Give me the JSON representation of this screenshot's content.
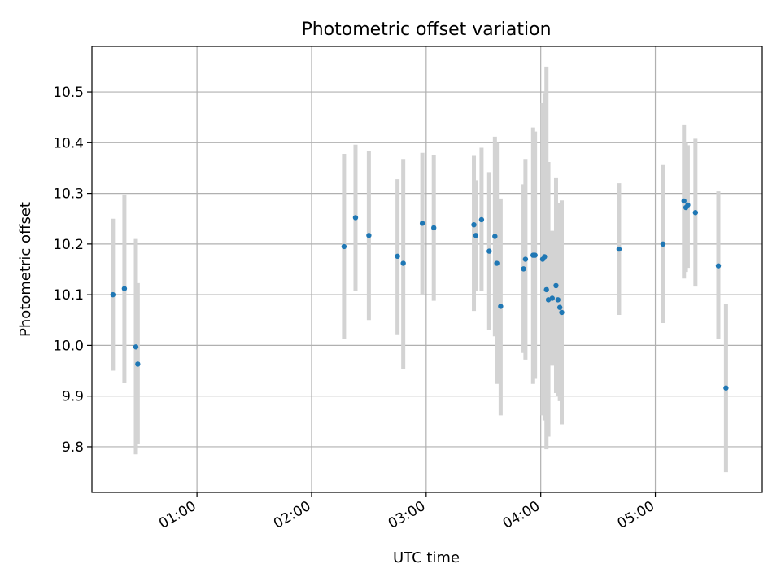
{
  "chart_data": {
    "type": "scatter",
    "title": "Photometric offset variation",
    "xlabel": "UTC time",
    "ylabel": "Photometric offset",
    "grid": true,
    "x_ticks": [
      "01:00",
      "02:00",
      "03:00",
      "04:00",
      "05:00"
    ],
    "y_ticks": [
      "9.8",
      "9.9",
      "10.0",
      "10.1",
      "10.2",
      "10.3",
      "10.4",
      "10.5"
    ],
    "xlim": [
      "00:05",
      "05:56"
    ],
    "ylim": [
      9.71,
      10.59
    ],
    "colors": {
      "point": "#1f77b4",
      "errorbar": "#d3d3d3"
    },
    "series": [
      {
        "points": [
          {
            "x": "00:16",
            "y": 10.1,
            "ylo": 9.95,
            "yhi": 10.25
          },
          {
            "x": "00:22",
            "y": 10.112,
            "ylo": 9.926,
            "yhi": 10.298
          },
          {
            "x": "00:28",
            "y": 9.997,
            "ylo": 9.785,
            "yhi": 10.21
          },
          {
            "x": "00:29",
            "y": 9.963,
            "ylo": 9.805,
            "yhi": 10.123
          },
          {
            "x": "02:17",
            "y": 10.195,
            "ylo": 10.012,
            "yhi": 10.378
          },
          {
            "x": "02:23",
            "y": 10.252,
            "ylo": 10.108,
            "yhi": 10.396
          },
          {
            "x": "02:30",
            "y": 10.217,
            "ylo": 10.05,
            "yhi": 10.384
          },
          {
            "x": "02:45",
            "y": 10.176,
            "ylo": 10.022,
            "yhi": 10.328
          },
          {
            "x": "02:48",
            "y": 10.162,
            "ylo": 9.954,
            "yhi": 10.368
          },
          {
            "x": "02:58",
            "y": 10.241,
            "ylo": 10.1,
            "yhi": 10.38
          },
          {
            "x": "03:04",
            "y": 10.232,
            "ylo": 10.088,
            "yhi": 10.376
          },
          {
            "x": "03:25",
            "y": 10.238,
            "ylo": 10.068,
            "yhi": 10.374
          },
          {
            "x": "03:26",
            "y": 10.217,
            "ylo": 10.108,
            "yhi": 10.326
          },
          {
            "x": "03:29",
            "y": 10.248,
            "ylo": 10.108,
            "yhi": 10.39
          },
          {
            "x": "03:33",
            "y": 10.186,
            "ylo": 10.03,
            "yhi": 10.342
          },
          {
            "x": "03:36",
            "y": 10.215,
            "ylo": 10.018,
            "yhi": 10.412
          },
          {
            "x": "03:37",
            "y": 10.162,
            "ylo": 9.924,
            "yhi": 10.4
          },
          {
            "x": "03:39",
            "y": 10.077,
            "ylo": 9.862,
            "yhi": 10.29
          },
          {
            "x": "03:51",
            "y": 10.151,
            "ylo": 9.985,
            "yhi": 10.318
          },
          {
            "x": "03:52",
            "y": 10.17,
            "ylo": 9.972,
            "yhi": 10.368
          },
          {
            "x": "03:56",
            "y": 10.178,
            "ylo": 9.924,
            "yhi": 10.43
          },
          {
            "x": "03:57",
            "y": 10.178,
            "ylo": 9.934,
            "yhi": 10.422
          },
          {
            "x": "04:01",
            "y": 10.17,
            "ylo": 9.862,
            "yhi": 10.478
          },
          {
            "x": "04:02",
            "y": 10.175,
            "ylo": 9.852,
            "yhi": 10.498
          },
          {
            "x": "04:03",
            "y": 10.11,
            "ylo": 9.795,
            "yhi": 10.55
          },
          {
            "x": "04:04",
            "y": 10.09,
            "ylo": 9.82,
            "yhi": 10.362
          },
          {
            "x": "04:06",
            "y": 10.093,
            "ylo": 9.96,
            "yhi": 10.226
          },
          {
            "x": "04:08",
            "y": 10.118,
            "ylo": 9.906,
            "yhi": 10.33
          },
          {
            "x": "04:09",
            "y": 10.09,
            "ylo": 9.9,
            "yhi": 10.28
          },
          {
            "x": "04:10",
            "y": 10.075,
            "ylo": 9.89,
            "yhi": 10.26
          },
          {
            "x": "04:11",
            "y": 10.065,
            "ylo": 9.844,
            "yhi": 10.286
          },
          {
            "x": "04:41",
            "y": 10.19,
            "ylo": 10.06,
            "yhi": 10.32
          },
          {
            "x": "05:04",
            "y": 10.2,
            "ylo": 10.044,
            "yhi": 10.356
          },
          {
            "x": "05:15",
            "y": 10.285,
            "ylo": 10.132,
            "yhi": 10.436
          },
          {
            "x": "05:16",
            "y": 10.272,
            "ylo": 10.145,
            "yhi": 10.4
          },
          {
            "x": "05:17",
            "y": 10.277,
            "ylo": 10.153,
            "yhi": 10.395
          },
          {
            "x": "05:21",
            "y": 10.262,
            "ylo": 10.116,
            "yhi": 10.408
          },
          {
            "x": "05:33",
            "y": 10.157,
            "ylo": 10.012,
            "yhi": 10.304
          },
          {
            "x": "05:37",
            "y": 9.916,
            "ylo": 9.75,
            "yhi": 10.082
          }
        ]
      }
    ]
  }
}
